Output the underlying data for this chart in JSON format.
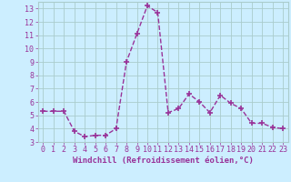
{
  "x": [
    0,
    1,
    2,
    3,
    4,
    5,
    6,
    7,
    8,
    9,
    10,
    11,
    12,
    13,
    14,
    15,
    16,
    17,
    18,
    19,
    20,
    21,
    22,
    23
  ],
  "y": [
    5.3,
    5.3,
    5.3,
    3.8,
    3.4,
    3.5,
    3.5,
    4.0,
    9.0,
    11.1,
    13.2,
    12.7,
    5.2,
    5.5,
    6.6,
    6.0,
    5.2,
    6.5,
    5.9,
    5.5,
    4.4,
    4.4,
    4.1,
    4.0
  ],
  "line_color": "#993399",
  "marker": "+",
  "marker_size": 4,
  "xlabel": "Windchill (Refroidissement éolien,°C)",
  "ylabel_ticks": [
    3,
    4,
    5,
    6,
    7,
    8,
    9,
    10,
    11,
    12,
    13
  ],
  "xlim": [
    -0.5,
    23.5
  ],
  "ylim": [
    3,
    13.5
  ],
  "background_color": "#cceeff",
  "grid_color": "#aacccc",
  "tick_label_color": "#993399",
  "xlabel_color": "#993399",
  "xlabel_fontsize": 6.5,
  "tick_fontsize": 6,
  "line_width": 1.0,
  "linestyle": "--"
}
